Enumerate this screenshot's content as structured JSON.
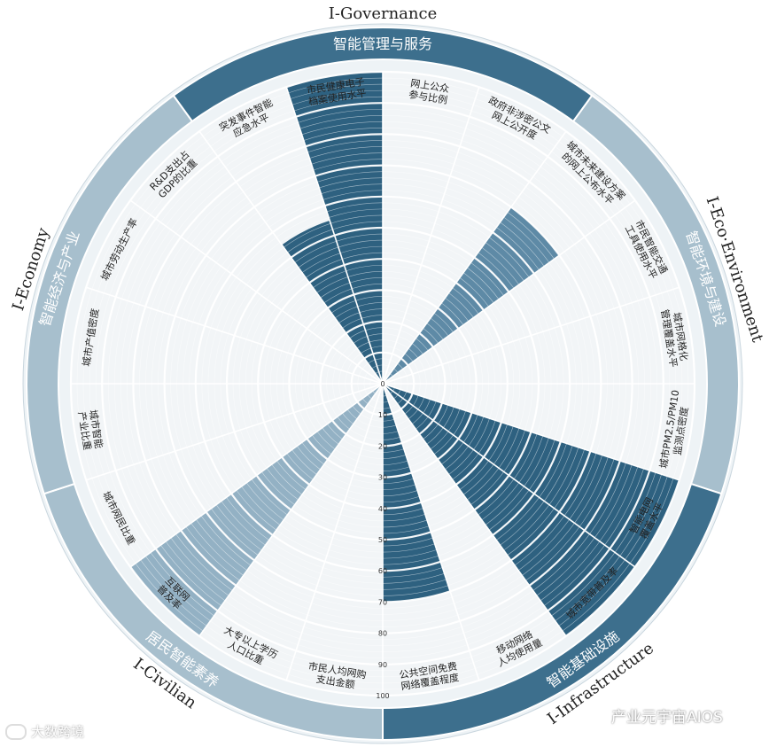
{
  "chart_data": {
    "type": "radial-bar",
    "rlim": [
      0,
      100
    ],
    "r_ticks": [
      "0",
      "10",
      "20",
      "30",
      "40",
      "50",
      "60",
      "70",
      "80",
      "90",
      "100"
    ],
    "colors": {
      "governance": "#2e6180",
      "eco": "#5e8aa6",
      "infrastructure": "#2e6180",
      "civilian": "#93b1c4",
      "economy": "#b3c8d5",
      "band_governance": "#3d6f8d",
      "band_eco": "#a7bfcd",
      "band_infrastructure": "#3d6f8d",
      "band_civilian": "#a7bfcd",
      "band_economy": "#a7bfcd"
    },
    "dimensions": [
      {
        "key": "governance",
        "title": "I-Governance",
        "band_label": "智能管理与服务"
      },
      {
        "key": "eco",
        "title": "I-Eco·Environment",
        "band_label": "智能环境与建设"
      },
      {
        "key": "infrastructure",
        "title": "I-Infrastructure",
        "band_label": "智能基础设施"
      },
      {
        "key": "civilian",
        "title": "I-Civilian",
        "band_label": "居民智能素养"
      },
      {
        "key": "economy",
        "title": "I-Economy",
        "band_label": "智能经济与产业"
      }
    ],
    "indicators": [
      {
        "label": [
          "网上公众",
          "参与比例"
        ],
        "dimension": "governance",
        "value": 0
      },
      {
        "label": [
          "政府非涉密公文",
          "网上公开度"
        ],
        "dimension": "governance",
        "value": 0
      },
      {
        "label": [
          "城市未来建设方案",
          "的网上公布水平"
        ],
        "dimension": "eco",
        "value": 70
      },
      {
        "label": [
          "市民智能交通",
          "工具使用水平"
        ],
        "dimension": "eco",
        "value": 0
      },
      {
        "label": [
          "城市网格化",
          "管理覆盖水平"
        ],
        "dimension": "eco",
        "value": 0
      },
      {
        "label": [
          "城市PM2.5/PM10",
          "监测点密度"
        ],
        "dimension": "eco",
        "value": 0
      },
      {
        "label": [
          "智能电网",
          "覆盖水平"
        ],
        "dimension": "infrastructure",
        "value": 100
      },
      {
        "label": [
          "城市宽带普及率"
        ],
        "dimension": "infrastructure",
        "value": 100
      },
      {
        "label": [
          "移动网络",
          "人均使用量"
        ],
        "dimension": "infrastructure",
        "value": 0
      },
      {
        "label": [
          "公共空间免费",
          "网络覆盖程度"
        ],
        "dimension": "infrastructure",
        "value": 70
      },
      {
        "label": [
          "市民人均网购",
          "支出金额"
        ],
        "dimension": "civilian",
        "value": 0
      },
      {
        "label": [
          "大专以上学历",
          "人口比重"
        ],
        "dimension": "civilian",
        "value": 0
      },
      {
        "label": [
          "互联网",
          "普及率"
        ],
        "dimension": "civilian",
        "value": 100
      },
      {
        "label": [
          "城市网民比重"
        ],
        "dimension": "civilian",
        "value": 0
      },
      {
        "label": [
          "城市智能",
          "产业比重"
        ],
        "dimension": "economy",
        "value": 0
      },
      {
        "label": [
          "城市产值密度"
        ],
        "dimension": "economy",
        "value": 0
      },
      {
        "label": [
          "城市劳动生产率"
        ],
        "dimension": "economy",
        "value": 0
      },
      {
        "label": [
          "R&D支出占",
          "GDP的比重"
        ],
        "dimension": "economy",
        "value": 0
      },
      {
        "label": [
          "突发事件智能",
          "应急水平"
        ],
        "dimension": "governance",
        "value": 55
      },
      {
        "label": [
          "市民健康电子",
          "档案使用水平"
        ],
        "dimension": "governance",
        "value": 100
      }
    ]
  },
  "watermarks": {
    "left": "大数跨境",
    "right": "产业元宇宙AIOS"
  }
}
